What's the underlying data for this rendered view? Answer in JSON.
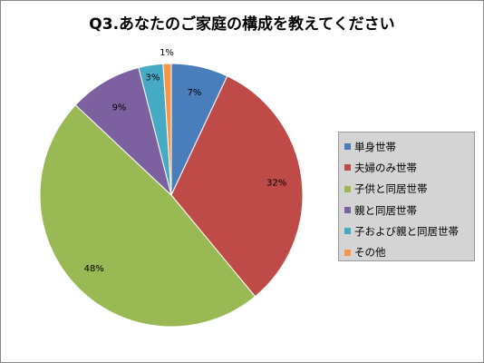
{
  "chart_data": {
    "type": "pie",
    "title": "Q3.あなたのご家庭の構成を教えてください",
    "start_angle_deg": 0,
    "direction": "clockwise",
    "legend_position": "right",
    "slices": [
      {
        "label": "単身世帯",
        "value": 7,
        "data_label": "7%",
        "color": "#4a7ebb"
      },
      {
        "label": "夫婦のみ世帯",
        "value": 32,
        "data_label": "32%",
        "color": "#be4b48"
      },
      {
        "label": "子供と同居世帯",
        "value": 48,
        "data_label": "48%",
        "color": "#98b954"
      },
      {
        "label": "親と同居世帯",
        "value": 9,
        "data_label": "9%",
        "color": "#7d60a0"
      },
      {
        "label": "子および親と同居世帯",
        "value": 3,
        "data_label": "3%",
        "color": "#46aac5"
      },
      {
        "label": "その他",
        "value": 1,
        "data_label": "1%",
        "color": "#f79646"
      }
    ]
  }
}
